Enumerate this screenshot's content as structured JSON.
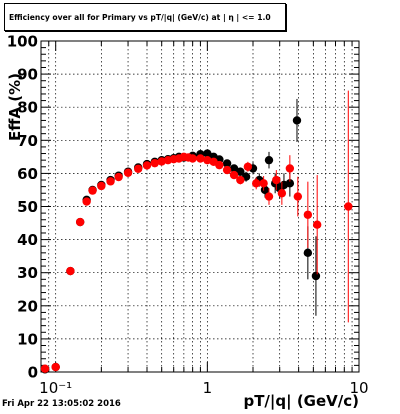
{
  "title": "Efficiency over all for Primary vs pT/|q| (GeV/c) at | η | <= 1.0",
  "footer_timestamp": "Fri Apr 22 13:05:02 2016",
  "chart_data": {
    "type": "scatter",
    "xlabel": "pT/|q| (GeV/c)",
    "ylabel": "EffA (%)",
    "xscale": "log",
    "xlim": [
      0.08,
      10
    ],
    "ylim": [
      0,
      100
    ],
    "grid": true,
    "x_tick_labels": [
      "10⁻¹",
      "1",
      "10"
    ],
    "y_tick_labels": [
      "0",
      "10",
      "20",
      "30",
      "40",
      "50",
      "60",
      "70",
      "80",
      "90",
      "100"
    ],
    "series": [
      {
        "color": "#000000",
        "points": [
          {
            "x": 0.085,
            "y": 0.8,
            "err": 0
          },
          {
            "x": 0.1,
            "y": 1.5,
            "err": 0
          },
          {
            "x": 0.125,
            "y": 30.5,
            "err": 0.5
          },
          {
            "x": 0.145,
            "y": 45.3,
            "err": 0.6
          },
          {
            "x": 0.16,
            "y": 52.0,
            "err": 0.6
          },
          {
            "x": 0.175,
            "y": 55.0,
            "err": 0.6
          },
          {
            "x": 0.2,
            "y": 56.5,
            "err": 0.5
          },
          {
            "x": 0.23,
            "y": 58.0,
            "err": 0.5
          },
          {
            "x": 0.26,
            "y": 59.3,
            "err": 0.5
          },
          {
            "x": 0.3,
            "y": 60.5,
            "err": 0.5
          },
          {
            "x": 0.35,
            "y": 61.8,
            "err": 0.5
          },
          {
            "x": 0.4,
            "y": 62.8,
            "err": 0.5
          },
          {
            "x": 0.45,
            "y": 63.5,
            "err": 0.5
          },
          {
            "x": 0.5,
            "y": 64.0,
            "err": 0.5
          },
          {
            "x": 0.55,
            "y": 64.3,
            "err": 0.6
          },
          {
            "x": 0.6,
            "y": 64.6,
            "err": 0.6
          },
          {
            "x": 0.65,
            "y": 65.0,
            "err": 0.6
          },
          {
            "x": 0.7,
            "y": 64.8,
            "err": 0.6
          },
          {
            "x": 0.8,
            "y": 65.3,
            "err": 0.7
          },
          {
            "x": 0.9,
            "y": 65.8,
            "err": 0.7
          },
          {
            "x": 1.0,
            "y": 66.0,
            "err": 0.8
          },
          {
            "x": 1.1,
            "y": 65.0,
            "err": 0.9
          },
          {
            "x": 1.2,
            "y": 64.2,
            "err": 1.0
          },
          {
            "x": 1.35,
            "y": 63.0,
            "err": 1.0
          },
          {
            "x": 1.5,
            "y": 61.5,
            "err": 1.2
          },
          {
            "x": 1.65,
            "y": 60.5,
            "err": 1.3
          },
          {
            "x": 1.8,
            "y": 59.0,
            "err": 1.5
          },
          {
            "x": 2.0,
            "y": 61.5,
            "err": 1.8
          },
          {
            "x": 2.2,
            "y": 58.0,
            "err": 2.0
          },
          {
            "x": 2.4,
            "y": 55.0,
            "err": 2.3
          },
          {
            "x": 2.55,
            "y": 64.0,
            "err": 2.5
          },
          {
            "x": 2.8,
            "y": 57.0,
            "err": 3.0
          },
          {
            "x": 3.0,
            "y": 55.5,
            "err": 3.2
          },
          {
            "x": 3.2,
            "y": 56.5,
            "err": 3.5
          },
          {
            "x": 3.5,
            "y": 57.0,
            "err": 4.0
          },
          {
            "x": 3.9,
            "y": 76.0,
            "err": 6.5
          },
          {
            "x": 4.6,
            "y": 36.0,
            "err": 8.0
          },
          {
            "x": 5.2,
            "y": 29.0,
            "err": 12.0
          }
        ]
      },
      {
        "color": "#ff0000",
        "points": [
          {
            "x": 0.085,
            "y": 1.0,
            "err": 0
          },
          {
            "x": 0.1,
            "y": 1.5,
            "err": 0
          },
          {
            "x": 0.125,
            "y": 30.5,
            "err": 0.5
          },
          {
            "x": 0.145,
            "y": 45.3,
            "err": 0.6
          },
          {
            "x": 0.16,
            "y": 51.5,
            "err": 0.6
          },
          {
            "x": 0.175,
            "y": 54.8,
            "err": 0.6
          },
          {
            "x": 0.2,
            "y": 56.2,
            "err": 0.5
          },
          {
            "x": 0.23,
            "y": 57.6,
            "err": 0.5
          },
          {
            "x": 0.26,
            "y": 58.9,
            "err": 0.5
          },
          {
            "x": 0.3,
            "y": 60.2,
            "err": 0.5
          },
          {
            "x": 0.35,
            "y": 61.4,
            "err": 0.5
          },
          {
            "x": 0.4,
            "y": 62.4,
            "err": 0.5
          },
          {
            "x": 0.45,
            "y": 63.1,
            "err": 0.5
          },
          {
            "x": 0.5,
            "y": 63.6,
            "err": 0.5
          },
          {
            "x": 0.55,
            "y": 64.0,
            "err": 0.6
          },
          {
            "x": 0.6,
            "y": 64.3,
            "err": 0.6
          },
          {
            "x": 0.65,
            "y": 64.5,
            "err": 0.6
          },
          {
            "x": 0.7,
            "y": 65.0,
            "err": 0.6
          },
          {
            "x": 0.75,
            "y": 64.8,
            "err": 0.6
          },
          {
            "x": 0.8,
            "y": 64.5,
            "err": 0.7
          },
          {
            "x": 0.9,
            "y": 64.5,
            "err": 0.7
          },
          {
            "x": 1.0,
            "y": 64.0,
            "err": 0.8
          },
          {
            "x": 1.1,
            "y": 63.5,
            "err": 0.9
          },
          {
            "x": 1.2,
            "y": 62.5,
            "err": 1.0
          },
          {
            "x": 1.35,
            "y": 61.0,
            "err": 1.0
          },
          {
            "x": 1.5,
            "y": 59.5,
            "err": 1.2
          },
          {
            "x": 1.65,
            "y": 58.0,
            "err": 1.3
          },
          {
            "x": 1.85,
            "y": 62.0,
            "err": 1.5
          },
          {
            "x": 2.1,
            "y": 57.0,
            "err": 1.8
          },
          {
            "x": 2.35,
            "y": 57.0,
            "err": 2.2
          },
          {
            "x": 2.55,
            "y": 53.0,
            "err": 2.5
          },
          {
            "x": 2.85,
            "y": 58.0,
            "err": 3.0
          },
          {
            "x": 3.1,
            "y": 54.0,
            "err": 3.5
          },
          {
            "x": 3.5,
            "y": 61.5,
            "err": 4.0
          },
          {
            "x": 3.95,
            "y": 53.0,
            "err": 6.0
          },
          {
            "x": 4.6,
            "y": 47.5,
            "err": 10.0
          },
          {
            "x": 5.3,
            "y": 44.5,
            "err": 15.0
          },
          {
            "x": 8.5,
            "y": 50.0,
            "err": 35.0
          }
        ]
      }
    ]
  }
}
